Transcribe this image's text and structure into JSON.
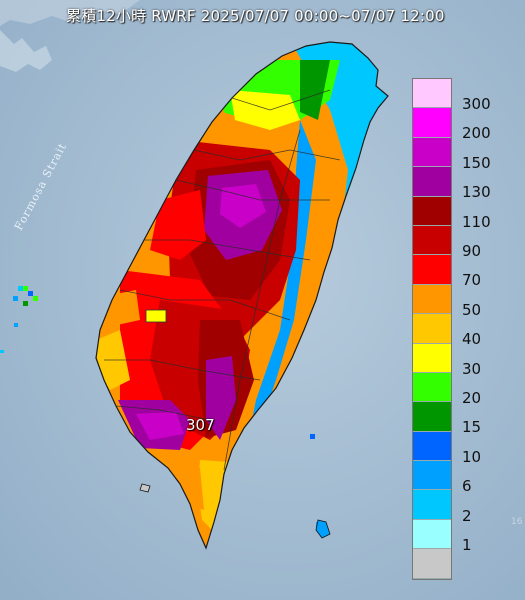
{
  "title": "累積12小時 RWRF 2025/07/07 00:00~07/07 12:00",
  "strait_label": "Formosa Strait",
  "peak_label": "307",
  "edge_label": "16",
  "legend": {
    "items": [
      {
        "label": "300",
        "color": "#ffc8ff"
      },
      {
        "label": "200",
        "color": "#ff00ff"
      },
      {
        "label": "150",
        "color": "#c800c8"
      },
      {
        "label": "130",
        "color": "#a000a0"
      },
      {
        "label": "110",
        "color": "#a00000"
      },
      {
        "label": "90",
        "color": "#c80000"
      },
      {
        "label": "70",
        "color": "#ff0000"
      },
      {
        "label": "50",
        "color": "#ff9600"
      },
      {
        "label": "40",
        "color": "#ffc800"
      },
      {
        "label": "30",
        "color": "#ffff00"
      },
      {
        "label": "20",
        "color": "#33ff00"
      },
      {
        "label": "15",
        "color": "#009600"
      },
      {
        "label": "10",
        "color": "#0064ff"
      },
      {
        "label": "6",
        "color": "#00a0ff"
      },
      {
        "label": "2",
        "color": "#00c8ff"
      },
      {
        "label": "1",
        "color": "#99ffff"
      },
      {
        "label": "",
        "color": "#c8c8c8"
      }
    ]
  },
  "colors": {
    "sea": "#9fb9cf",
    "land_gray": "#cfcfcf"
  }
}
